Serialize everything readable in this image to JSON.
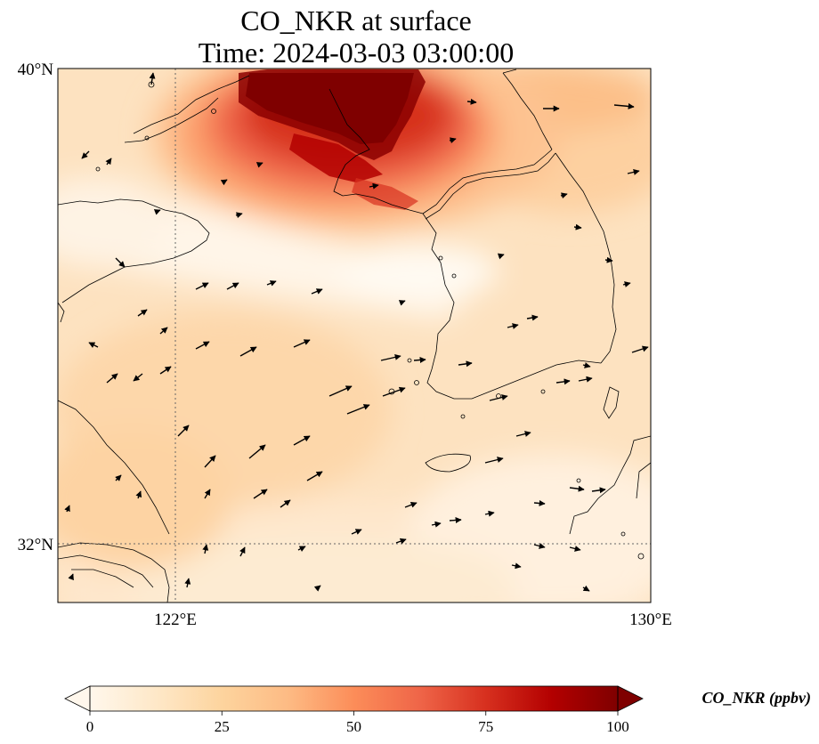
{
  "title_line1": "CO_NKR at surface",
  "title_line2": "Time: 2024-03-03 03:00:00",
  "map": {
    "lon_range": [
      119,
      130
    ],
    "lat_range": [
      31,
      40
    ],
    "lon_ticks": [
      {
        "value": 122,
        "label": "122°E"
      },
      {
        "value": 130,
        "label": "130°E"
      }
    ],
    "lat_ticks": [
      {
        "value": 40,
        "label": "40°N"
      },
      {
        "value": 32,
        "label": "32°N"
      }
    ],
    "gridlines": true,
    "field_colormap": "OrRd",
    "vector_field": "wind arrows"
  },
  "colorbar": {
    "label": "CO_NKR (ppbv)",
    "min": 0,
    "max": 100,
    "ticks": [
      {
        "value": 0,
        "label": "0"
      },
      {
        "value": 25,
        "label": "25"
      },
      {
        "value": 50,
        "label": "50"
      },
      {
        "value": 75,
        "label": "75"
      },
      {
        "value": 100,
        "label": "100"
      }
    ],
    "extend": "both",
    "orientation": "horizontal",
    "colors": [
      "#fff7ec",
      "#fee8c8",
      "#fdd49e",
      "#fdbb84",
      "#fc8d59",
      "#ef6548",
      "#d7301f",
      "#b30000",
      "#7f0000"
    ]
  }
}
